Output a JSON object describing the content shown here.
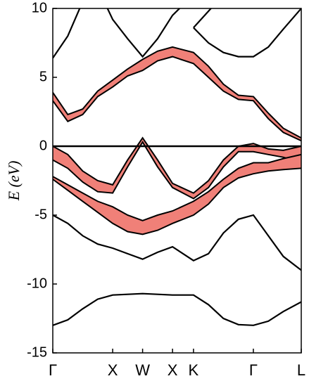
{
  "chart_data": {
    "type": "band-structure",
    "y_label": "E (eV)",
    "x": [
      0,
      0.25,
      0.5,
      0.75,
      1,
      1.25,
      1.5,
      1.75,
      2,
      2.35,
      2.6,
      2.85,
      3.1,
      3.35,
      3.6,
      3.85,
      4.15
    ],
    "xlim": [
      0,
      4.15
    ],
    "xticks": [
      {
        "value": 0,
        "label": "Γ"
      },
      {
        "value": 1,
        "label": "X"
      },
      {
        "value": 1.5,
        "label": "W"
      },
      {
        "value": 2,
        "label": "X"
      },
      {
        "value": 2.35,
        "label": "K"
      },
      {
        "value": 3.35,
        "label": "Γ"
      },
      {
        "value": 4.15,
        "label": "L"
      }
    ],
    "ylim": [
      -15,
      10
    ],
    "yticks": [
      10,
      5,
      0,
      -5,
      -10,
      -15
    ],
    "hline": 0,
    "line_color": "#000000",
    "band_color": "#f08078",
    "lines": [
      {
        "values": [
          -13,
          -12.6,
          -11.8,
          -11.1,
          -10.8,
          -10.75,
          -10.7,
          -10.75,
          -10.8,
          -10.8,
          -11.5,
          -12.5,
          -12.95,
          -13,
          -12.7,
          -12,
          -11.3
        ]
      },
      {
        "values": [
          -5,
          -5.6,
          -6.5,
          -7.1,
          -7.4,
          -7.8,
          -8.2,
          -7.7,
          -7.3,
          -8.3,
          -7.8,
          -6.3,
          -5.3,
          -5,
          -6.5,
          -8,
          -9
        ]
      },
      {
        "values": [
          6.4,
          8,
          10.5,
          null,
          null,
          null,
          null,
          null,
          null,
          null,
          null,
          null,
          null,
          null,
          null,
          null,
          null
        ]
      },
      {
        "values": [
          null,
          null,
          null,
          11.5,
          9.2,
          7.8,
          6.5,
          7.8,
          9.5,
          11,
          null,
          null,
          null,
          null,
          null,
          null,
          null
        ]
      },
      {
        "values": [
          null,
          null,
          null,
          null,
          null,
          null,
          null,
          null,
          null,
          8.6,
          9.8,
          11,
          null,
          null,
          null,
          null,
          null
        ]
      },
      {
        "values": [
          null,
          null,
          null,
          null,
          null,
          null,
          null,
          null,
          null,
          8.6,
          7.5,
          6.8,
          6.5,
          6.5,
          7.2,
          8.5,
          10
        ]
      }
    ],
    "bands": [
      {
        "low": [
          3.3,
          1.8,
          2.3,
          3.6,
          4.3,
          5.1,
          5.5,
          6.2,
          6.5,
          6,
          5,
          4,
          3.4,
          3.3,
          2,
          1,
          0.4
        ],
        "high": [
          3.9,
          2.3,
          2.7,
          4,
          4.8,
          5.6,
          6.3,
          6.9,
          7.2,
          6.8,
          5.8,
          4.5,
          3.7,
          3.6,
          2.4,
          1.3,
          0.6
        ]
      },
      {
        "low": [
          -1,
          -1.6,
          -2.6,
          -3.3,
          -3.4,
          -1.5,
          0.3,
          -1.5,
          -3,
          -3.8,
          -3,
          -1.5,
          -0.4,
          -0.4,
          -0.6,
          -0.8,
          -1.2
        ],
        "high": [
          0,
          -0.6,
          -1.8,
          -2.5,
          -2.8,
          -1,
          0.6,
          -1,
          -2.7,
          -3.4,
          -2.5,
          -1,
          0,
          0.2,
          -0.2,
          -0.3,
          0
        ]
      },
      {
        "low": [
          -2.4,
          -3.2,
          -4,
          -4.8,
          -5.6,
          -6.2,
          -6.4,
          -6.1,
          -5.6,
          -5,
          -4.2,
          -3,
          -2.3,
          -2,
          -1.8,
          -1.7,
          -1.6
        ],
        "high": [
          -2.2,
          -2.8,
          -3.4,
          -4,
          -4.4,
          -5,
          -5.4,
          -5,
          -4.7,
          -4,
          -3.3,
          -2.4,
          -1.6,
          -1.2,
          -1.2,
          -0.9,
          -0.6
        ]
      }
    ]
  }
}
